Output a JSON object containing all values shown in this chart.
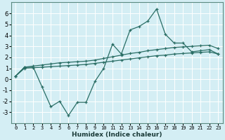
{
  "x": [
    0,
    1,
    2,
    3,
    4,
    5,
    6,
    7,
    8,
    9,
    10,
    11,
    12,
    13,
    14,
    15,
    16,
    17,
    18,
    19,
    20,
    21,
    22,
    23
  ],
  "y_main": [
    0.3,
    1.1,
    1.1,
    -0.7,
    -2.5,
    -2.0,
    -3.3,
    -2.1,
    -2.1,
    -0.2,
    1.0,
    3.2,
    2.3,
    4.5,
    4.8,
    5.3,
    6.4,
    4.1,
    3.3,
    3.3,
    2.5,
    2.6,
    2.7,
    2.3
  ],
  "y_upper": [
    0.3,
    1.1,
    1.2,
    1.3,
    1.4,
    1.5,
    1.55,
    1.6,
    1.65,
    1.75,
    1.9,
    2.05,
    2.2,
    2.35,
    2.45,
    2.6,
    2.7,
    2.8,
    2.9,
    2.95,
    3.0,
    3.05,
    3.1,
    2.8
  ],
  "y_lower": [
    0.3,
    1.0,
    1.05,
    1.1,
    1.15,
    1.2,
    1.25,
    1.3,
    1.35,
    1.45,
    1.55,
    1.65,
    1.75,
    1.85,
    1.95,
    2.05,
    2.15,
    2.2,
    2.3,
    2.35,
    2.4,
    2.45,
    2.5,
    2.3
  ],
  "color": "#2a6e65",
  "bg_color": "#d4eef4",
  "grid_color": "#ffffff",
  "xlabel": "Humidex (Indice chaleur)",
  "ylim": [
    -4,
    7
  ],
  "xlim": [
    -0.5,
    23.5
  ],
  "yticks": [
    -3,
    -2,
    -1,
    0,
    1,
    2,
    3,
    4,
    5,
    6
  ],
  "xticks": [
    0,
    1,
    2,
    3,
    4,
    5,
    6,
    7,
    8,
    9,
    10,
    11,
    12,
    13,
    14,
    15,
    16,
    17,
    18,
    19,
    20,
    21,
    22,
    23
  ],
  "xlabel_fontsize": 6.5,
  "tick_fontsize": 5.5
}
